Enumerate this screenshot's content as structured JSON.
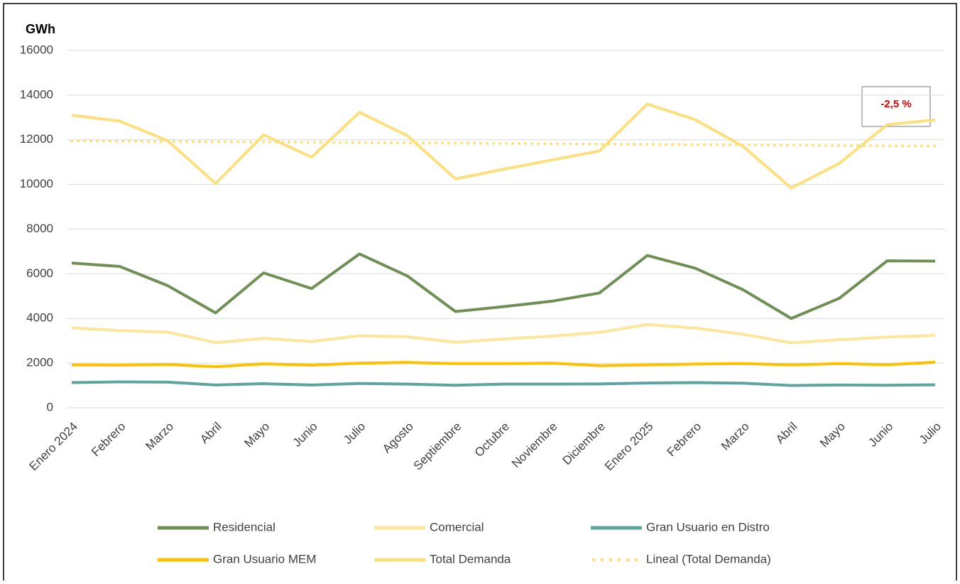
{
  "chart_data": {
    "type": "line",
    "ylabel": "GWh",
    "categories": [
      "Enero 2024",
      "Febrero",
      "Marzo",
      "Abril",
      "Mayo",
      "Junio",
      "Julio",
      "Agosto",
      "Septiembre",
      "Octubre",
      "Noviembre",
      "Diciembre",
      "Enero 2025",
      "Febrero",
      "Marzo",
      "Abril",
      "Mayo",
      "Junio",
      "Julio"
    ],
    "series": [
      {
        "name": "Residencial",
        "color": "#6f8f55",
        "values": [
          6480,
          6330,
          5470,
          4250,
          6040,
          5340,
          6890,
          5900,
          4310,
          4530,
          4770,
          5140,
          6820,
          6250,
          5280,
          4000,
          4900,
          6580,
          6570
        ]
      },
      {
        "name": "Comercial",
        "color": "#fde699",
        "values": [
          3580,
          3460,
          3390,
          2920,
          3110,
          2970,
          3230,
          3180,
          2940,
          3080,
          3210,
          3380,
          3730,
          3570,
          3290,
          2910,
          3050,
          3170,
          3240
        ]
      },
      {
        "name": "Gran Usuario en Distro",
        "color": "#5ba59e",
        "values": [
          1130,
          1160,
          1150,
          1020,
          1080,
          1020,
          1090,
          1060,
          1010,
          1060,
          1060,
          1070,
          1110,
          1130,
          1100,
          1000,
          1020,
          1010,
          1030
        ]
      },
      {
        "name": "Gran Usuario MEM",
        "color": "#ffc000",
        "values": [
          1920,
          1910,
          1940,
          1840,
          1970,
          1910,
          2000,
          2030,
          1980,
          1980,
          2000,
          1890,
          1920,
          1960,
          1980,
          1920,
          1980,
          1930,
          2040
        ]
      },
      {
        "name": "Total Demanda",
        "color": "#fde07e",
        "values": [
          13100,
          12840,
          11960,
          10040,
          12220,
          11220,
          13230,
          12180,
          10250,
          10680,
          11090,
          11500,
          13600,
          12900,
          11700,
          9840,
          10940,
          12680,
          12890
        ]
      },
      {
        "name": "Lineal (Total Demanda)",
        "color": "#fde07e",
        "dotted": true,
        "values": [
          11950,
          11937,
          11924,
          11912,
          11899,
          11886,
          11873,
          11861,
          11848,
          11835,
          11822,
          11809,
          11797,
          11784,
          11771,
          11758,
          11746,
          11733,
          11720
        ]
      }
    ],
    "annotation": "-2,5 %",
    "ylim": [
      0,
      16000
    ],
    "yticks": [
      0,
      2000,
      4000,
      6000,
      8000,
      10000,
      12000,
      14000,
      16000
    ],
    "grid": true
  }
}
